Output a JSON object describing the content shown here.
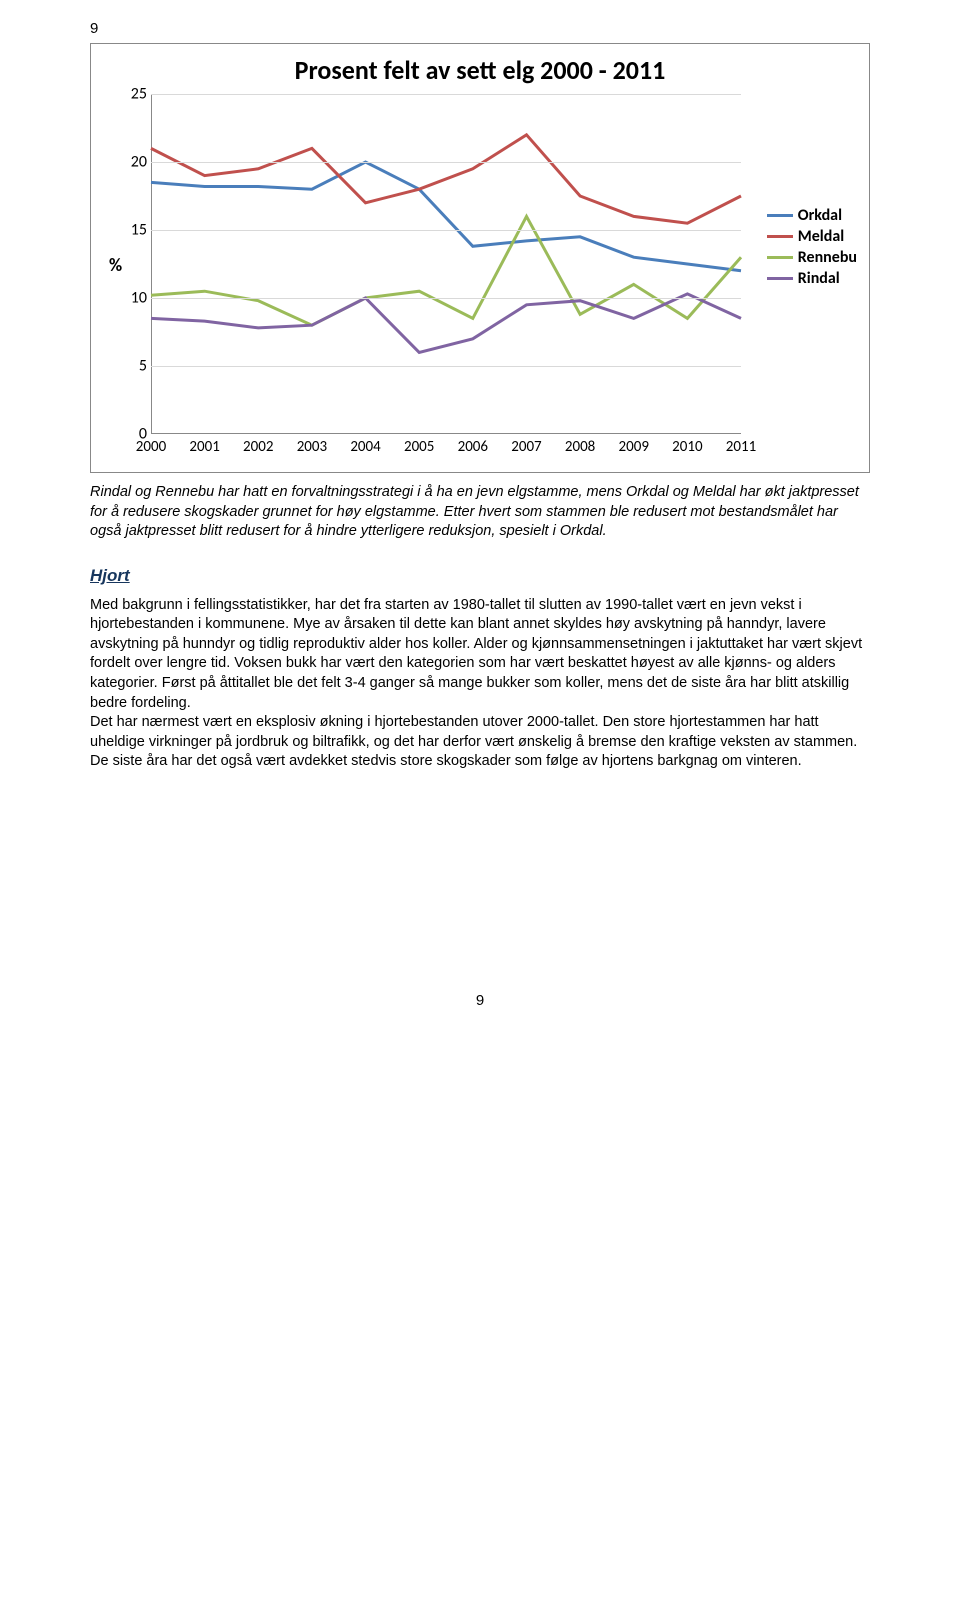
{
  "page_number_top": "9",
  "page_number_bottom": "9",
  "chart": {
    "type": "line",
    "title": "Prosent felt av sett elg 2000 - 2011",
    "title_fontsize": 26,
    "y_axis_label": "%",
    "ylim": [
      0,
      25
    ],
    "ytick_step": 5,
    "yticks": [
      0,
      5,
      10,
      15,
      20,
      25
    ],
    "categories": [
      "2000",
      "2001",
      "2002",
      "2003",
      "2004",
      "2005",
      "2006",
      "2007",
      "2008",
      "2009",
      "2010",
      "2011"
    ],
    "background_color": "#ffffff",
    "grid_color": "#d9d9d9",
    "line_width": 3,
    "series": [
      {
        "name": "Orkdal",
        "color": "#4a7ebb",
        "values": [
          18.5,
          18.2,
          18.2,
          18.0,
          20.0,
          18.0,
          13.8,
          14.2,
          14.5,
          13.0,
          12.5,
          12.0
        ]
      },
      {
        "name": "Meldal",
        "color": "#c0504d",
        "values": [
          21.0,
          19.0,
          19.5,
          21.0,
          17.0,
          18.0,
          19.5,
          22.0,
          17.5,
          16.0,
          15.5,
          17.5
        ]
      },
      {
        "name": "Rennebu",
        "color": "#9bbb59",
        "values": [
          10.2,
          10.5,
          9.8,
          8.0,
          10.0,
          10.5,
          8.5,
          16.0,
          8.8,
          11.0,
          8.5,
          13.0
        ]
      },
      {
        "name": "Rindal",
        "color": "#8064a2",
        "values": [
          8.5,
          8.3,
          7.8,
          8.0,
          10.0,
          6.0,
          7.0,
          9.5,
          9.8,
          8.5,
          10.3,
          8.5
        ]
      }
    ],
    "legend_position": "right"
  },
  "caption_text": "Rindal og Rennebu har hatt en forvaltningsstrategi i å ha en jevn elgstamme, mens Orkdal og Meldal har økt jaktpresset for å redusere skogskader grunnet for høy elgstamme. Etter hvert som stammen ble redusert mot bestandsmålet har også jaktpresset blitt redusert for å hindre ytterligere reduksjon, spesielt i Orkdal.",
  "section_heading": "Hjort",
  "body_paragraph_1": "Med bakgrunn i fellingsstatistikker, har det fra starten av 1980-tallet til slutten av 1990-tallet vært en jevn vekst i hjortebestanden i kommunene. Mye av årsaken til dette kan blant annet skyldes høy avskytning på hanndyr, lavere avskytning på hunndyr og tidlig reproduktiv alder hos koller. Alder og kjønnsammensetningen i jaktuttaket har vært skjevt fordelt over lengre tid. Voksen bukk har vært den kategorien som har vært beskattet høyest av alle kjønns- og alders kategorier. Først på åttitallet ble det felt 3-4 ganger så mange bukker som koller, mens det de siste åra har blitt atskillig bedre fordeling.",
  "body_paragraph_2": "Det har nærmest vært en eksplosiv økning i hjortebestanden utover 2000-tallet. Den store hjortestammen har hatt uheldige virkninger på jordbruk og biltrafikk, og det har derfor vært ønskelig å bremse den kraftige veksten av stammen. De siste åra har det også vært avdekket stedvis store skogskader som følge av hjortens barkgnag om vinteren."
}
